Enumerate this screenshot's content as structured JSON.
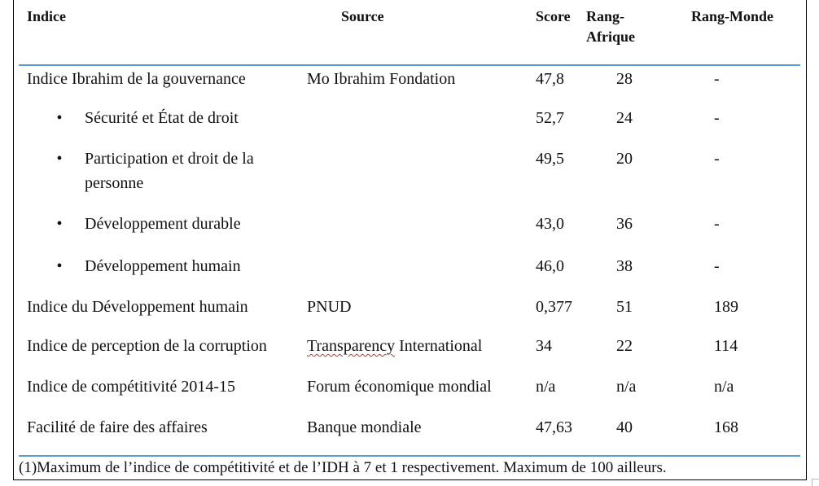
{
  "headers": {
    "indice": "Indice",
    "source": "Source",
    "score": "Score",
    "rang_afrique_1": "Rang-",
    "rang_afrique_2": "Afrique",
    "rang_monde": "Rang-Monde"
  },
  "rows": [
    {
      "indice": "Indice Ibrahim de la gouvernance",
      "source": "Mo Ibrahim Fondation",
      "score": "47,8",
      "rang_afrique": "28",
      "rang_monde": "-"
    },
    {
      "indice": "Sécurité et État de droit",
      "source": "",
      "score": "52,7",
      "rang_afrique": "24",
      "rang_monde": "-"
    },
    {
      "indice_1": "Participation et droit de la",
      "indice_2": "personne",
      "source": "",
      "score": "49,5",
      "rang_afrique": "20",
      "rang_monde": "-"
    },
    {
      "indice": "Développement durable",
      "source": "",
      "score": "43,0",
      "rang_afrique": "36",
      "rang_monde": "-"
    },
    {
      "indice": "Développement humain",
      "source": "",
      "score": "46,0",
      "rang_afrique": "38",
      "rang_monde": "-"
    },
    {
      "indice": "Indice du Développement humain",
      "source": "PNUD",
      "score": "0,377",
      "rang_afrique": "51",
      "rang_monde": "189"
    },
    {
      "indice": "Indice de perception de la corruption",
      "source_1": "Transparency",
      "source_2": " International",
      "score": "34",
      "rang_afrique": "22",
      "rang_monde": "114"
    },
    {
      "indice": "Indice de compétitivité 2014-15",
      "source": "Forum économique mondial",
      "score": "n/a",
      "rang_afrique": "n/a",
      "rang_monde": "n/a"
    },
    {
      "indice": "Facilité de faire des affaires",
      "source": "Banque mondiale",
      "score": "47,63",
      "rang_afrique": "40",
      "rang_monde": "168"
    }
  ],
  "bullet_symbol": "•",
  "footnote": "(1)Maximum de l’indice de compétitivité et de l’IDH à 7 et 1 respectivement. Maximum de 100 ailleurs.",
  "rule_color": "#5b9bd5"
}
